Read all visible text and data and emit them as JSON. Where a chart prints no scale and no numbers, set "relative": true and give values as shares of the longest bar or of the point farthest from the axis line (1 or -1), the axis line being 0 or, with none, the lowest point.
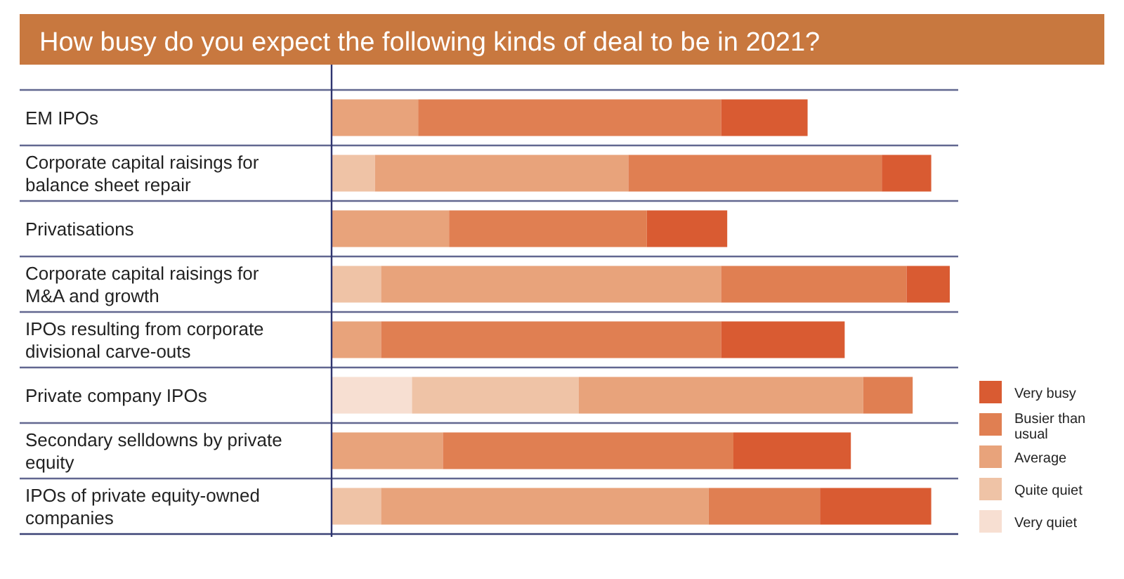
{
  "chart_data": {
    "type": "bar",
    "orientation": "horizontal",
    "stacked": true,
    "relative": true,
    "title": "How busy do you expect the following kinds of deal to be in 2021?",
    "categories": [
      "EM IPOs",
      "Corporate capital raisings for balance sheet repair",
      "Privatisations",
      "Corporate capital raisings for M&A and growth",
      "IPOs resulting from corporate divisional carve-outs",
      "Private company IPOs",
      "Secondary selldowns by private equity",
      "IPOs of private equity-owned companies"
    ],
    "series": [
      {
        "name": "Very quiet",
        "color": "#f7dfd2",
        "values": [
          null,
          null,
          null,
          null,
          null,
          0.13,
          null,
          null
        ]
      },
      {
        "name": "Quite quiet",
        "color": "#efc3a6",
        "values": [
          null,
          0.07,
          null,
          0.08,
          null,
          0.27,
          null,
          0.08
        ]
      },
      {
        "name": "Average",
        "color": "#e8a37b",
        "values": [
          0.14,
          0.41,
          0.19,
          0.55,
          0.08,
          0.46,
          0.18,
          0.53
        ]
      },
      {
        "name": "Busier than usual",
        "color": "#e07f52",
        "values": [
          0.49,
          0.41,
          0.32,
          0.3,
          0.55,
          0.08,
          0.47,
          0.18
        ]
      },
      {
        "name": "Very busy",
        "color": "#d95b32",
        "values": [
          0.14,
          0.08,
          0.13,
          0.07,
          0.2,
          null,
          0.19,
          0.18
        ]
      }
    ],
    "legend": "right"
  }
}
